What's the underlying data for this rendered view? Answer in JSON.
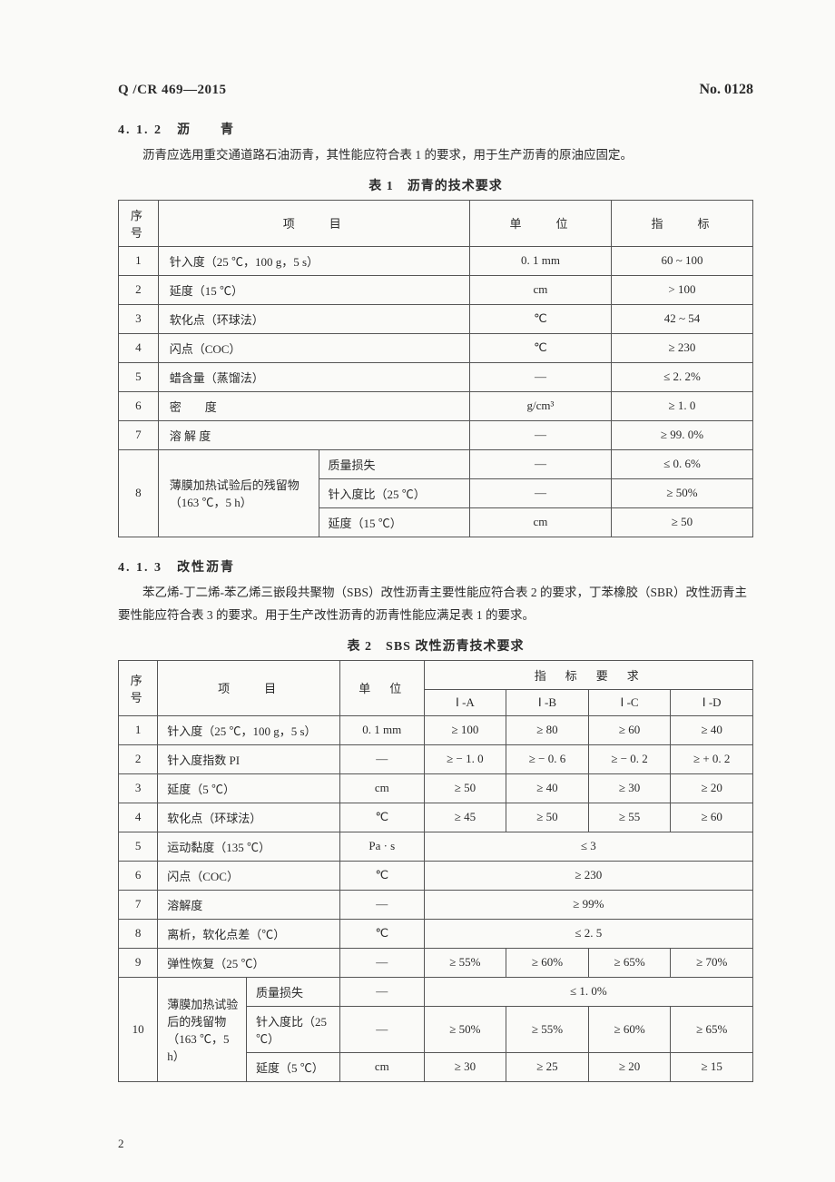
{
  "header": {
    "doc_code": "Q /CR 469—2015",
    "doc_no": "No. 0128"
  },
  "section_412": {
    "heading": "4. 1. 2　沥　　青",
    "body": "沥青应选用重交通道路石油沥青，其性能应符合表 1 的要求，用于生产沥青的原油应固定。"
  },
  "table1": {
    "caption": "表 1　沥青的技术要求",
    "head": {
      "num": "序号",
      "item": "项　　目",
      "unit": "单　　位",
      "spec": "指　　标"
    },
    "rows": [
      {
        "n": "1",
        "item": "针入度（25 ℃，100 g，5 s）",
        "unit": "0. 1 mm",
        "spec": "60 ~ 100"
      },
      {
        "n": "2",
        "item": "延度（15 ℃）",
        "unit": "cm",
        "spec": "> 100"
      },
      {
        "n": "3",
        "item": "软化点（环球法）",
        "unit": "℃",
        "spec": "42 ~ 54"
      },
      {
        "n": "4",
        "item": "闪点（COC）",
        "unit": "℃",
        "spec": "≥ 230"
      },
      {
        "n": "5",
        "item": "蜡含量（蒸馏法）",
        "unit": "—",
        "spec": "≤ 2. 2%"
      },
      {
        "n": "6",
        "item": "密　　度",
        "unit": "g/cm³",
        "spec": "≥ 1. 0"
      },
      {
        "n": "7",
        "item": "溶 解 度",
        "unit": "—",
        "spec": "≥ 99. 0%"
      }
    ],
    "group8": {
      "n": "8",
      "label": "薄膜加热试验后的残留物（163 ℃，5 h）",
      "subs": [
        {
          "item": "质量损失",
          "unit": "—",
          "spec": "≤ 0. 6%"
        },
        {
          "item": "针入度比（25 ℃）",
          "unit": "—",
          "spec": "≥ 50%"
        },
        {
          "item": "延度（15 ℃）",
          "unit": "cm",
          "spec": "≥ 50"
        }
      ]
    }
  },
  "section_413": {
    "heading": "4. 1. 3　改性沥青",
    "body": "苯乙烯-丁二烯-苯乙烯三嵌段共聚物（SBS）改性沥青主要性能应符合表 2 的要求，丁苯橡胶（SBR）改性沥青主要性能应符合表 3 的要求。用于生产改性沥青的沥青性能应满足表 1 的要求。"
  },
  "table2": {
    "caption": "表 2　SBS 改性沥青技术要求",
    "head": {
      "num": "序号",
      "item": "项　　目",
      "unit": "单　位",
      "spec_group": "指　标　要　求",
      "specs": [
        "Ⅰ -A",
        "Ⅰ -B",
        "Ⅰ -C",
        "Ⅰ -D"
      ]
    },
    "rows": [
      {
        "n": "1",
        "item": "针入度（25 ℃，100 g，5 s）",
        "unit": "0. 1 mm",
        "v": [
          "≥ 100",
          "≥ 80",
          "≥ 60",
          "≥ 40"
        ]
      },
      {
        "n": "2",
        "item": "针入度指数 PI",
        "unit": "—",
        "v": [
          "≥ − 1. 0",
          "≥ − 0. 6",
          "≥ − 0. 2",
          "≥ + 0. 2"
        ]
      },
      {
        "n": "3",
        "item": "延度（5 ℃）",
        "unit": "cm",
        "v": [
          "≥ 50",
          "≥ 40",
          "≥ 30",
          "≥ 20"
        ]
      },
      {
        "n": "4",
        "item": "软化点（环球法）",
        "unit": "℃",
        "v": [
          "≥ 45",
          "≥ 50",
          "≥ 55",
          "≥ 60"
        ]
      },
      {
        "n": "5",
        "item": "运动黏度（135 ℃）",
        "unit": "Pa · s",
        "span": "≤ 3"
      },
      {
        "n": "6",
        "item": "闪点（COC）",
        "unit": "℃",
        "span": "≥ 230"
      },
      {
        "n": "7",
        "item": "溶解度",
        "unit": "—",
        "span": "≥ 99%"
      },
      {
        "n": "8",
        "item": "离析，软化点差（℃）",
        "unit": "℃",
        "span": "≤ 2. 5"
      },
      {
        "n": "9",
        "item": "弹性恢复（25 ℃）",
        "unit": "—",
        "v": [
          "≥ 55%",
          "≥ 60%",
          "≥ 65%",
          "≥ 70%"
        ]
      }
    ],
    "group10": {
      "n": "10",
      "label": "薄膜加热试验后的残留物（163 ℃，5 h）",
      "subs": [
        {
          "item": "质量损失",
          "unit": "—",
          "span": "≤ 1. 0%"
        },
        {
          "item": "针入度比（25 ℃）",
          "unit": "—",
          "v": [
            "≥ 50%",
            "≥ 55%",
            "≥ 60%",
            "≥ 65%"
          ]
        },
        {
          "item": "延度（5 ℃）",
          "unit": "cm",
          "v": [
            "≥ 30",
            "≥ 25",
            "≥ 20",
            "≥ 15"
          ]
        }
      ]
    }
  },
  "page_number": "2"
}
